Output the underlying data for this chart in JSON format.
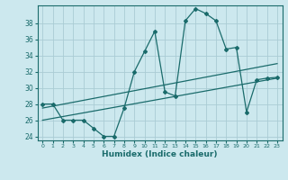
{
  "xlabel": "Humidex (Indice chaleur)",
  "bg_color": "#cce8ee",
  "line_color": "#1a6b6b",
  "grid_color": "#aaccd4",
  "xlim": [
    -0.5,
    23.5
  ],
  "ylim": [
    23.5,
    40.2
  ],
  "xticks": [
    0,
    1,
    2,
    3,
    4,
    5,
    6,
    7,
    8,
    9,
    10,
    11,
    12,
    13,
    14,
    15,
    16,
    17,
    18,
    19,
    20,
    21,
    22,
    23
  ],
  "yticks": [
    24,
    26,
    28,
    30,
    32,
    34,
    36,
    38
  ],
  "main_x": [
    0,
    1,
    2,
    3,
    4,
    5,
    6,
    7,
    8,
    9,
    10,
    11,
    12,
    13,
    14,
    15,
    16,
    17,
    18,
    19,
    20,
    21,
    22,
    23
  ],
  "main_y": [
    28,
    28,
    26,
    26,
    26,
    25,
    24,
    24,
    27.5,
    32,
    34.5,
    37,
    29.5,
    29,
    38.3,
    39.8,
    39.2,
    38.3,
    34.8,
    35,
    27,
    31,
    31.2,
    31.3
  ],
  "trend1_x": [
    0,
    23
  ],
  "trend1_y": [
    27.5,
    33.0
  ],
  "trend2_x": [
    0,
    23
  ],
  "trend2_y": [
    26.0,
    31.2
  ]
}
